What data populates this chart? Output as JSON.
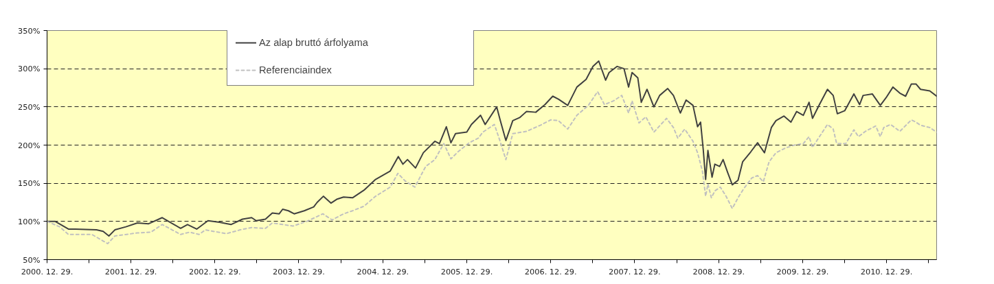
{
  "chart_data": {
    "type": "line",
    "x": [
      "2000-12-29",
      "2001-02-03",
      "2001-04-01",
      "2001-05-01",
      "2001-08-01",
      "2001-08-30",
      "2001-09-24",
      "2001-10-20",
      "2001-12-07",
      "2002-01-26",
      "2002-03-16",
      "2002-05-14",
      "2002-06-23",
      "2002-08-02",
      "2002-09-01",
      "2002-10-11",
      "2002-11-29",
      "2003-01-18",
      "2003-03-09",
      "2003-04-28",
      "2003-06-07",
      "2003-06-27",
      "2003-08-06",
      "2003-09-05",
      "2003-10-05",
      "2003-10-20",
      "2003-11-14",
      "2003-12-09",
      "2004-01-22",
      "2004-03-03",
      "2004-03-18",
      "2004-04-14",
      "2004-05-17",
      "2004-06-11",
      "2004-07-11",
      "2004-08-19",
      "2004-10-08",
      "2004-11-27",
      "2005-01-30",
      "2005-03-06",
      "2005-03-26",
      "2005-04-15",
      "2005-05-20",
      "2005-06-23",
      "2005-08-12",
      "2005-09-01",
      "2005-10-01",
      "2005-10-21",
      "2005-11-10",
      "2005-12-29",
      "2006-01-18",
      "2006-02-27",
      "2006-03-19",
      "2006-05-08",
      "2006-05-23",
      "2006-06-17",
      "2006-07-17",
      "2006-08-16",
      "2006-09-15",
      "2006-10-25",
      "2006-12-04",
      "2007-01-07",
      "2007-02-01",
      "2007-03-13",
      "2007-04-22",
      "2007-06-01",
      "2007-07-01",
      "2007-07-26",
      "2007-08-25",
      "2007-09-09",
      "2007-10-14",
      "2007-11-13",
      "2007-12-03",
      "2007-12-18",
      "2008-01-12",
      "2008-01-27",
      "2008-02-21",
      "2008-03-22",
      "2008-04-16",
      "2008-05-21",
      "2008-06-15",
      "2008-07-15",
      "2008-08-09",
      "2008-09-08",
      "2008-09-28",
      "2008-10-11",
      "2008-10-23",
      "2008-11-02",
      "2008-11-12",
      "2008-11-30",
      "2008-12-12",
      "2009-01-02",
      "2009-01-17",
      "2009-02-06",
      "2009-02-26",
      "2009-03-23",
      "2009-04-12",
      "2009-05-17",
      "2009-06-16",
      "2009-07-16",
      "2009-08-15",
      "2009-09-04",
      "2009-10-09",
      "2009-11-08",
      "2009-12-03",
      "2010-01-01",
      "2010-01-26",
      "2010-02-10",
      "2010-03-12",
      "2010-04-16",
      "2010-05-11",
      "2010-05-29",
      "2010-06-30",
      "2010-08-09",
      "2010-09-03",
      "2010-09-18",
      "2010-10-28",
      "2010-12-02",
      "2010-12-27",
      "2011-01-26",
      "2011-02-25",
      "2011-03-22",
      "2011-04-16",
      "2011-05-06",
      "2011-05-26",
      "2011-07-05",
      "2011-08-04"
    ],
    "series": [
      {
        "name": "Az alap bruttó árfolyama",
        "color": "#404040",
        "line_style": "solid",
        "values": [
          100,
          100,
          90,
          90,
          89,
          87,
          81,
          89,
          93,
          98,
          97,
          105,
          98,
          91,
          96,
          90,
          101,
          99,
          96,
          103,
          105,
          101,
          103,
          111,
          110,
          116,
          114,
          110,
          114,
          119,
          125,
          133,
          124,
          129,
          132,
          131,
          141,
          155,
          166,
          185,
          175,
          181,
          170,
          190,
          205,
          202,
          224,
          203,
          215,
          217,
          227,
          239,
          227,
          250,
          233,
          206,
          232,
          236,
          244,
          243,
          253,
          264,
          260,
          252,
          276,
          286,
          303,
          310,
          285,
          295,
          303,
          300,
          276,
          295,
          288,
          256,
          273,
          250,
          265,
          274,
          265,
          242,
          259,
          252,
          224,
          230,
          193,
          155,
          193,
          158,
          175,
          172,
          181,
          164,
          148,
          154,
          178,
          191,
          203,
          190,
          223,
          232,
          238,
          230,
          244,
          239,
          256,
          235,
          253,
          273,
          265,
          241,
          245,
          267,
          253,
          265,
          267,
          252,
          262,
          276,
          268,
          264,
          280,
          280,
          273,
          271,
          264
        ]
      },
      {
        "name": "Referenciaindex",
        "color": "#c0c0c0",
        "line_style": "dashed",
        "x": [
          "2000-12-29",
          "2001-02-22",
          "2001-04-01",
          "2001-07-12",
          "2001-09-19",
          "2001-10-20",
          "2002-01-26",
          "2002-03-26",
          "2002-05-14",
          "2002-08-02",
          "2002-09-11",
          "2002-10-21",
          "2002-11-18",
          "2003-02-17",
          "2003-04-18",
          "2003-06-07",
          "2003-08-06",
          "2003-09-05",
          "2003-12-04",
          "2004-02-01",
          "2004-04-12",
          "2004-05-22",
          "2004-07-11",
          "2004-08-19",
          "2004-10-08",
          "2004-11-27",
          "2005-01-30",
          "2005-03-04",
          "2005-04-05",
          "2005-05-17",
          "2005-07-03",
          "2005-08-12",
          "2005-09-20",
          "2005-10-21",
          "2005-11-20",
          "2006-01-08",
          "2006-02-17",
          "2006-03-09",
          "2006-04-28",
          "2006-05-23",
          "2006-06-17",
          "2006-07-17",
          "2006-09-15",
          "2006-11-14",
          "2006-12-29",
          "2007-02-01",
          "2007-03-13",
          "2007-04-22",
          "2007-06-11",
          "2007-07-21",
          "2007-08-20",
          "2007-09-29",
          "2007-11-03",
          "2007-12-03",
          "2007-12-18",
          "2008-01-17",
          "2008-02-16",
          "2008-03-22",
          "2008-05-16",
          "2008-06-15",
          "2008-07-04",
          "2008-08-03",
          "2008-09-08",
          "2008-09-28",
          "2008-10-19",
          "2008-11-02",
          "2008-11-12",
          "2008-11-27",
          "2008-12-12",
          "2009-01-05",
          "2009-01-30",
          "2009-02-26",
          "2009-03-23",
          "2009-04-17",
          "2009-05-22",
          "2009-06-16",
          "2009-07-11",
          "2009-08-05",
          "2009-09-04",
          "2009-10-14",
          "2009-11-23",
          "2010-01-01",
          "2010-01-26",
          "2010-02-10",
          "2010-03-12",
          "2010-04-16",
          "2010-05-11",
          "2010-05-26",
          "2010-07-05",
          "2010-08-09",
          "2010-08-29",
          "2010-09-28",
          "2010-11-12",
          "2010-12-02",
          "2010-12-17",
          "2011-01-16",
          "2011-02-25",
          "2011-04-16",
          "2011-05-06",
          "2011-05-26",
          "2011-07-05",
          "2011-08-04"
        ],
        "values": [
          100,
          93,
          83,
          83,
          71,
          81,
          85,
          86,
          96,
          83,
          86,
          83,
          89,
          84,
          89,
          92,
          91,
          98,
          94,
          100,
          110,
          102,
          110,
          114,
          120,
          133,
          145,
          163,
          153,
          145,
          172,
          181,
          202,
          182,
          191,
          203,
          209,
          217,
          227,
          205,
          181,
          215,
          218,
          226,
          233,
          232,
          221,
          239,
          252,
          270,
          253,
          258,
          265,
          242,
          258,
          229,
          237,
          217,
          235,
          223,
          209,
          221,
          205,
          190,
          166,
          133,
          149,
          131,
          140,
          145,
          133,
          117,
          131,
          143,
          157,
          160,
          152,
          178,
          190,
          196,
          200,
          202,
          211,
          197,
          211,
          227,
          221,
          202,
          202,
          220,
          211,
          218,
          225,
          211,
          223,
          227,
          218,
          233,
          230,
          226,
          223,
          217
        ]
      }
    ],
    "xlim": [
      "2000-12-29",
      "2011-08-04"
    ],
    "xticks": [
      {
        "value": "2000-12-29",
        "label": "2000. 12. 29."
      },
      {
        "value": "2001-06-29",
        "label": null
      },
      {
        "value": "2001-12-29",
        "label": "2001. 12. 29."
      },
      {
        "value": "2002-06-29",
        "label": null
      },
      {
        "value": "2002-12-29",
        "label": "2002. 12. 29."
      },
      {
        "value": "2003-06-29",
        "label": null
      },
      {
        "value": "2003-12-29",
        "label": "2003. 12. 29."
      },
      {
        "value": "2004-06-29",
        "label": null
      },
      {
        "value": "2004-12-29",
        "label": "2004. 12. 29."
      },
      {
        "value": "2005-06-29",
        "label": null
      },
      {
        "value": "2005-12-29",
        "label": "2005. 12. 29."
      },
      {
        "value": "2006-06-29",
        "label": null
      },
      {
        "value": "2006-12-29",
        "label": "2006. 12. 29."
      },
      {
        "value": "2007-06-29",
        "label": null
      },
      {
        "value": "2007-12-29",
        "label": "2007. 12. 29."
      },
      {
        "value": "2008-06-29",
        "label": null
      },
      {
        "value": "2008-12-29",
        "label": "2008. 12. 29."
      },
      {
        "value": "2009-06-29",
        "label": null
      },
      {
        "value": "2009-12-29",
        "label": "2009. 12. 29."
      },
      {
        "value": "2010-06-29",
        "label": null
      },
      {
        "value": "2010-12-29",
        "label": "2010. 12. 29."
      },
      {
        "value": "2011-06-29",
        "label": null
      }
    ],
    "ylim": [
      50,
      350
    ],
    "yticks": [
      {
        "value": 50,
        "label": "50%"
      },
      {
        "value": 100,
        "label": "100%"
      },
      {
        "value": 150,
        "label": "150%"
      },
      {
        "value": 200,
        "label": "200%"
      },
      {
        "value": 250,
        "label": "250%"
      },
      {
        "value": 300,
        "label": "300%"
      },
      {
        "value": 350,
        "label": "350%"
      }
    ],
    "grid": "y",
    "legend": "top"
  }
}
